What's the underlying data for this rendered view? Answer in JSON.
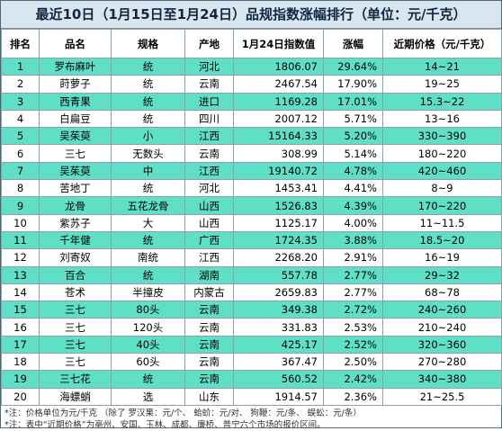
{
  "title": "最近10日（1月15日至1月24日）品规指数涨幅排行（单位：元/千克）",
  "headers": {
    "rank": "排名",
    "name": "品名",
    "spec": "规格",
    "origin": "产地",
    "index": "1月24日指数值",
    "change": "涨幅",
    "price": "近期价格（元/千克）"
  },
  "rows": [
    [
      "1",
      "罗布麻叶",
      "统",
      "河北",
      "1806.07",
      "29.64%",
      "14~21"
    ],
    [
      "2",
      "莳萝子",
      "统",
      "云南",
      "2467.54",
      "17.90%",
      "19~25"
    ],
    [
      "3",
      "西青果",
      "统",
      "进口",
      "1169.28",
      "17.01%",
      "15.3~22"
    ],
    [
      "4",
      "白扁豆",
      "统",
      "四川",
      "2007.12",
      "5.71%",
      "13~16"
    ],
    [
      "5",
      "吴茱萸",
      "小",
      "江西",
      "15164.33",
      "5.20%",
      "330~390"
    ],
    [
      "6",
      "三七",
      "无数头",
      "云南",
      "308.99",
      "5.14%",
      "180~220"
    ],
    [
      "7",
      "吴茱萸",
      "中",
      "江西",
      "19140.72",
      "4.78%",
      "420~460"
    ],
    [
      "8",
      "苦地丁",
      "统",
      "河北",
      "1453.41",
      "4.41%",
      "8~9"
    ],
    [
      "9",
      "龙骨",
      "五花龙骨",
      "山西",
      "1526.83",
      "4.39%",
      "170~220"
    ],
    [
      "10",
      "紫苏子",
      "大",
      "山西",
      "1125.17",
      "4.00%",
      "11~11.5"
    ],
    [
      "11",
      "千年健",
      "统",
      "广西",
      "1724.35",
      "3.88%",
      "18.5~20"
    ],
    [
      "12",
      "刘寄奴",
      "南统",
      "江西",
      "2268.20",
      "2.91%",
      "16~19"
    ],
    [
      "13",
      "百合",
      "统",
      "湖南",
      "557.78",
      "2.77%",
      "29~32"
    ],
    [
      "14",
      "苍术",
      "半撞皮",
      "内蒙古",
      "2659.83",
      "2.77%",
      "68~78"
    ],
    [
      "15",
      "三七",
      "80头",
      "云南",
      "349.38",
      "2.72%",
      "240~260"
    ],
    [
      "16",
      "三七",
      "120头",
      "云南",
      "331.83",
      "2.53%",
      "210~240"
    ],
    [
      "17",
      "三七",
      "40头",
      "云南",
      "425.17",
      "2.52%",
      "320~360"
    ],
    [
      "18",
      "三七",
      "60头",
      "云南",
      "367.47",
      "2.50%",
      "270~280"
    ],
    [
      "19",
      "三七花",
      "统",
      "云南",
      "560.52",
      "2.42%",
      "340~380"
    ],
    [
      "20",
      "海螵蛸",
      "选",
      "山东",
      "1914.57",
      "2.36%",
      "21~25.5"
    ]
  ],
  "notes": [
    "*注：价格单位为元/千克   （除了   罗汉果：元/个、   蛤蚧：元/对、   狗鞭：元/条、   蜈蚣：元/条）",
    "*注：表中“近期价格”为亳州、安国、玉林、成都、廉桥、普宁六个市场的报价区间。"
  ],
  "colors": {
    "title_bg": "#d9e6ef",
    "title_text": "#0e2841",
    "stripe": "#5fe0c6",
    "border": "#8aa2ad"
  }
}
